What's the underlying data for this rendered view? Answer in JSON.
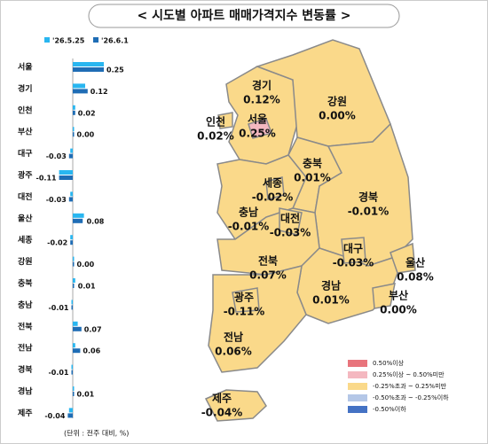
{
  "title": "< 시도별 아파트 매매가격지수 변동률 >",
  "chart_data": [
    {
      "type": "hbar",
      "categories": [
        "서울",
        "경기",
        "인천",
        "부산",
        "대구",
        "광주",
        "대전",
        "울산",
        "세종",
        "강원",
        "충북",
        "충남",
        "전북",
        "전남",
        "경북",
        "경남",
        "제주"
      ],
      "xlim": [
        -0.15,
        0.35
      ],
      "series": [
        {
          "name": "'26.5.25",
          "color": "#29b6f0",
          "values": [
            0.25,
            0.1,
            0.02,
            0.01,
            -0.02,
            -0.11,
            -0.02,
            0.09,
            -0.02,
            0.0,
            0.02,
            -0.01,
            0.04,
            0.02,
            -0.01,
            0.01,
            -0.03
          ]
        },
        {
          "name": "'26.6.1",
          "color": "#1f6db5",
          "values": [
            0.25,
            0.12,
            0.02,
            0.0,
            -0.03,
            -0.11,
            -0.03,
            0.08,
            -0.02,
            0.0,
            0.01,
            -0.01,
            0.07,
            0.06,
            -0.01,
            0.01,
            -0.04
          ],
          "value_labels": [
            "0.25",
            "0.12",
            "0.02",
            "0.00",
            "-0.03",
            "-0.11",
            "-0.03",
            "0.08",
            "-0.02",
            "0.00",
            "0.01",
            "-0.01",
            "0.07",
            "0.06",
            "-0.01",
            "0.01",
            "-0.04"
          ]
        }
      ],
      "note": "(단위 : 전주 대비, %)"
    },
    {
      "type": "map",
      "regions": [
        {
          "name": "경기",
          "value": 0.12,
          "value_label": "0.12%",
          "color": "#fad98a"
        },
        {
          "name": "강원",
          "value": 0.0,
          "value_label": "0.00%",
          "color": "#fad98a"
        },
        {
          "name": "인천",
          "value": 0.02,
          "value_label": "0.02%",
          "color": "#fad98a"
        },
        {
          "name": "서울",
          "value": 0.25,
          "value_label": "0.25%",
          "color": "#f4b8c0"
        },
        {
          "name": "충북",
          "value": 0.01,
          "value_label": "0.01%",
          "color": "#fad98a"
        },
        {
          "name": "세종",
          "value": -0.02,
          "value_label": "-0.02%",
          "color": "#fad98a"
        },
        {
          "name": "충남",
          "value": -0.01,
          "value_label": "-0.01%",
          "color": "#fad98a"
        },
        {
          "name": "대전",
          "value": -0.03,
          "value_label": "-0.03%",
          "color": "#fad98a"
        },
        {
          "name": "경북",
          "value": -0.01,
          "value_label": "-0.01%",
          "color": "#fad98a"
        },
        {
          "name": "대구",
          "value": -0.03,
          "value_label": "-0.03%",
          "color": "#fad98a"
        },
        {
          "name": "울산",
          "value": 0.08,
          "value_label": "0.08%",
          "color": "#fad98a"
        },
        {
          "name": "전북",
          "value": 0.07,
          "value_label": "0.07%",
          "color": "#fad98a"
        },
        {
          "name": "경남",
          "value": 0.01,
          "value_label": "0.01%",
          "color": "#fad98a"
        },
        {
          "name": "부산",
          "value": 0.0,
          "value_label": "0.00%",
          "color": "#fad98a"
        },
        {
          "name": "광주",
          "value": -0.11,
          "value_label": "-0.11%",
          "color": "#fad98a"
        },
        {
          "name": "전남",
          "value": 0.06,
          "value_label": "0.06%",
          "color": "#fad98a"
        },
        {
          "name": "제주",
          "value": -0.04,
          "value_label": "-0.04%",
          "color": "#fad98a"
        }
      ],
      "legend": [
        {
          "label": "0.50%이상",
          "color": "#e8747c"
        },
        {
          "label": "0.25%이상 ~ 0.50%미만",
          "color": "#f4b8c0"
        },
        {
          "label": "-0.25%초과 ~ 0.25%미만",
          "color": "#fad98a"
        },
        {
          "label": "-0.50%초과 ~ -0.25%이하",
          "color": "#b4c7e7"
        },
        {
          "label": "-0.50%이하",
          "color": "#4472c4"
        }
      ]
    }
  ]
}
